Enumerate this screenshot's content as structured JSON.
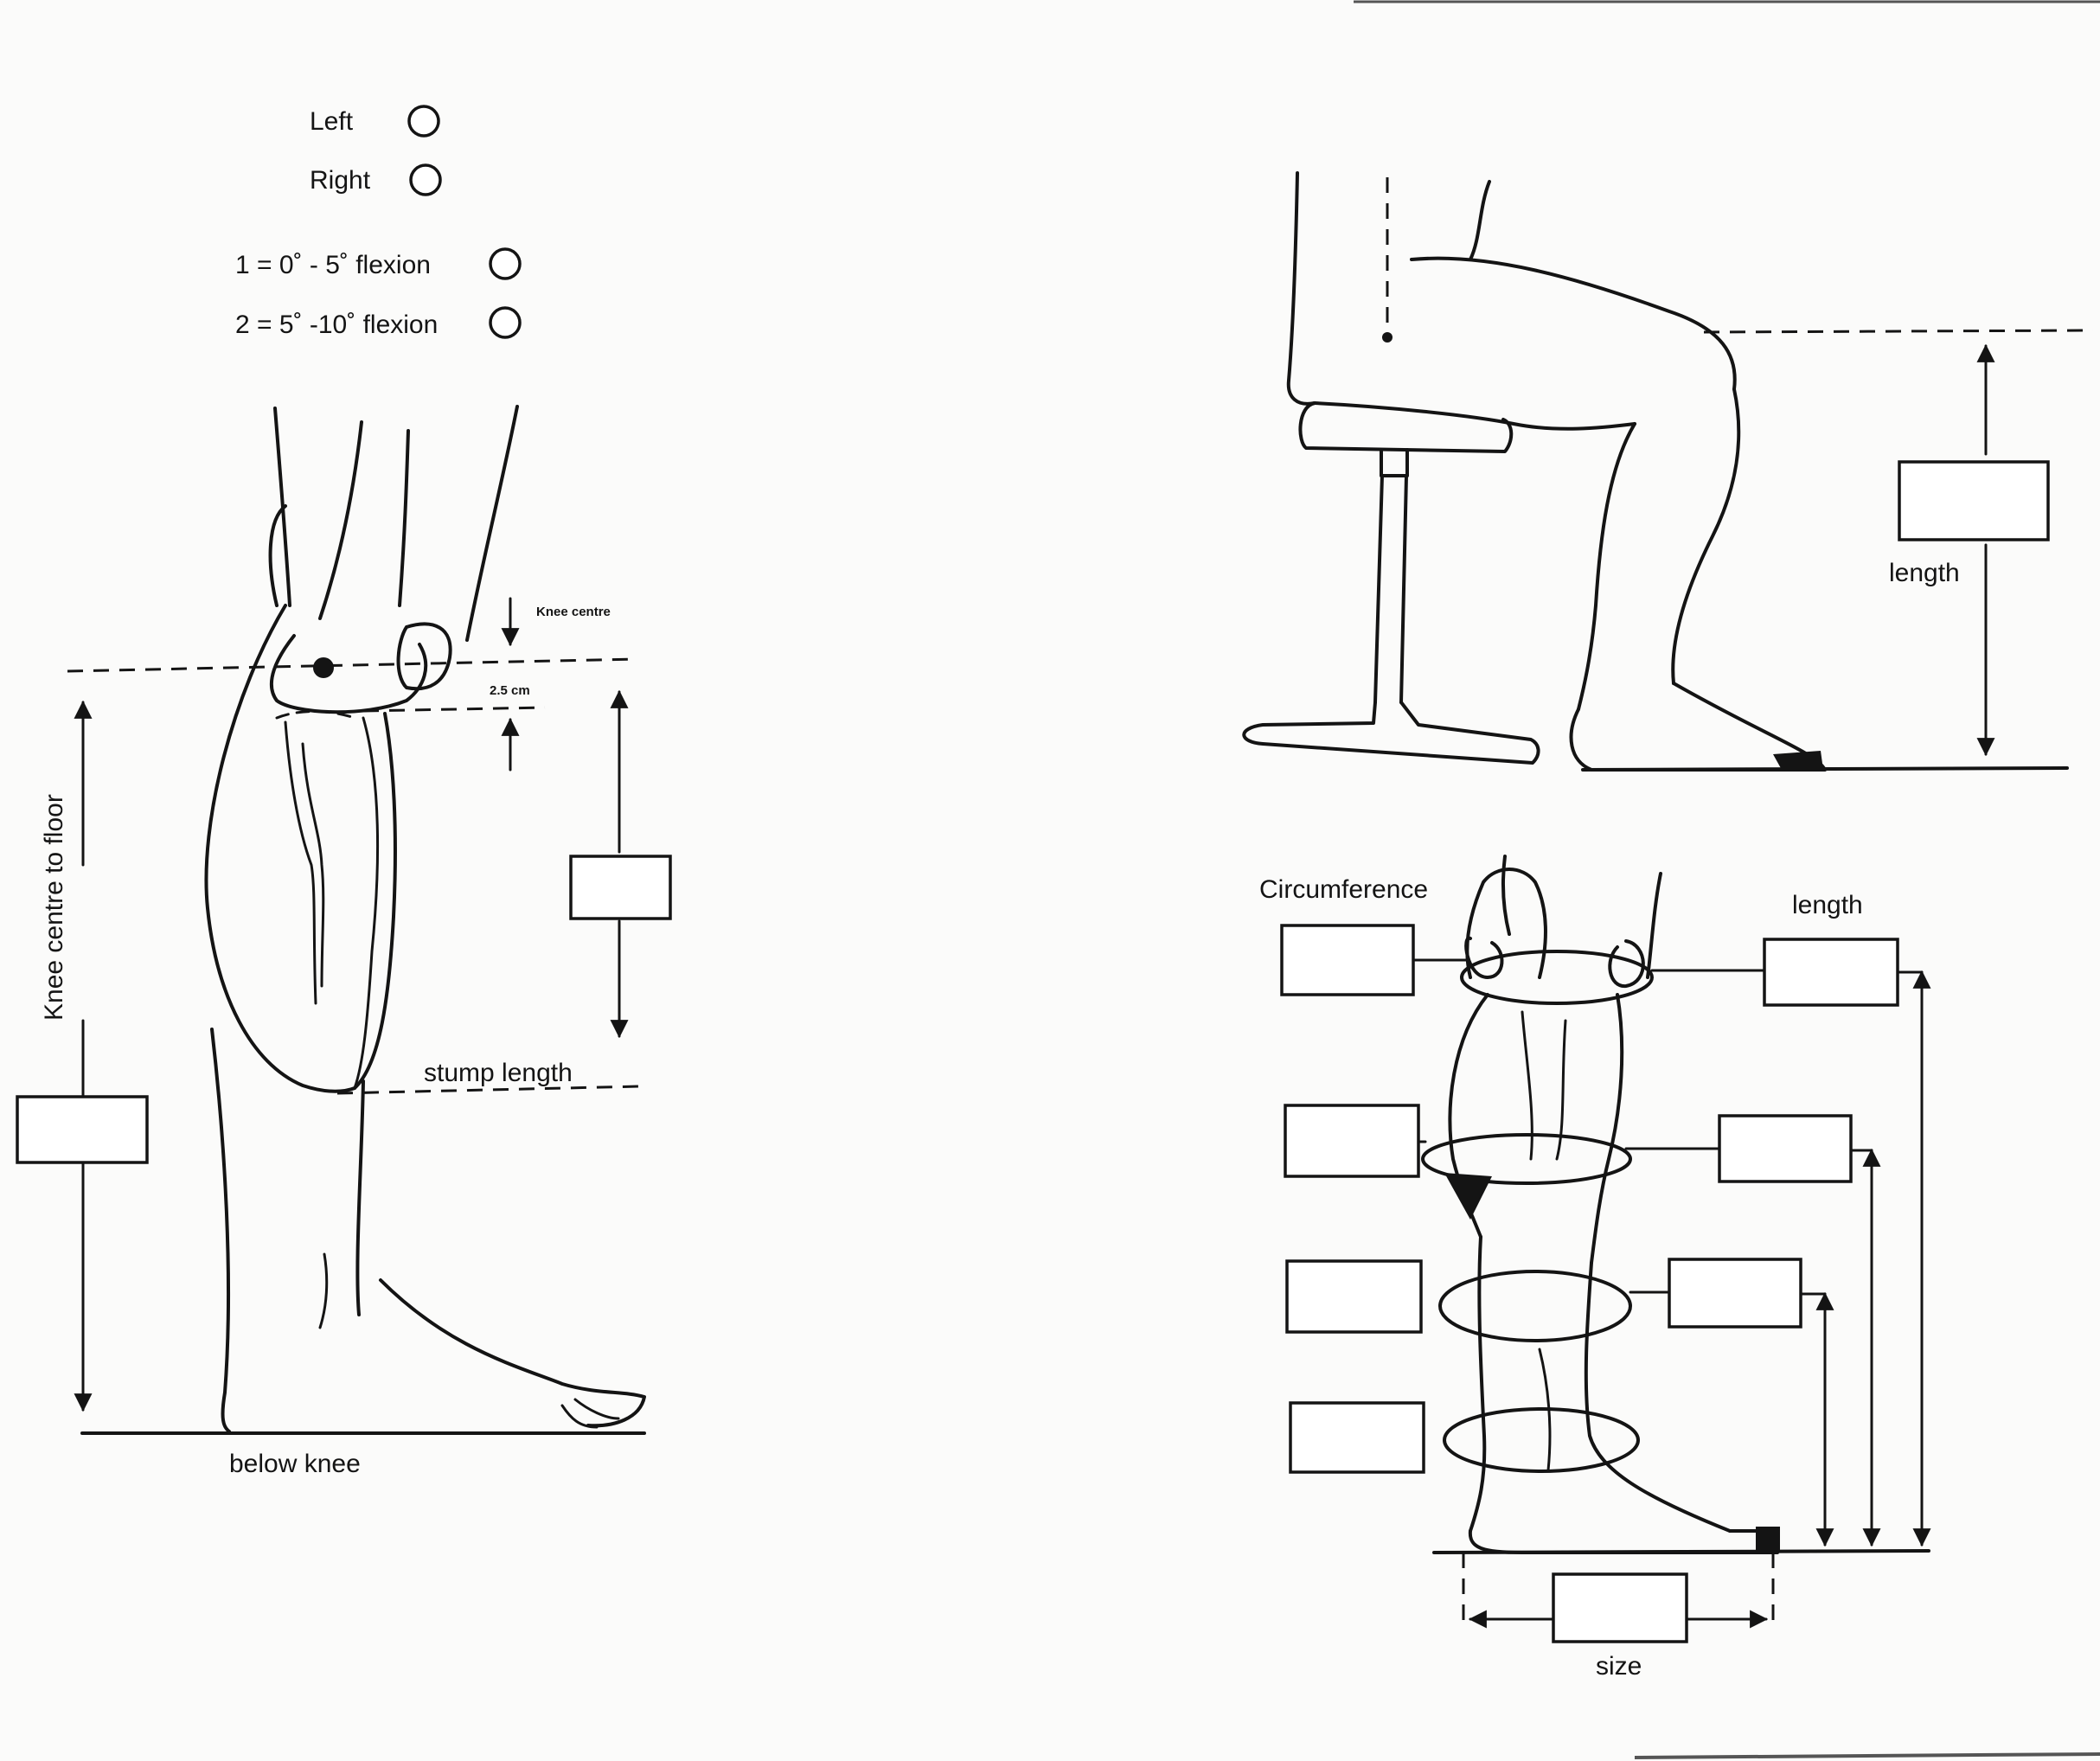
{
  "options": {
    "left_label": "Left",
    "right_label": "Right",
    "flexion_1_label": "1 = 0˚ - 5˚ flexion",
    "flexion_2_label": "2 = 5˚ -10˚ flexion"
  },
  "left_figure": {
    "knee_centre_label": "Knee centre",
    "offset_label": "2.5 cm",
    "knee_centre_to_floor_label": "Knee centre to floor",
    "stump_length_label": "stump length",
    "caption": "below knee"
  },
  "seated_figure": {
    "length_label": "length"
  },
  "measure_figure": {
    "circumference_label": "Circumference",
    "length_label": "length",
    "size_label": "size"
  }
}
